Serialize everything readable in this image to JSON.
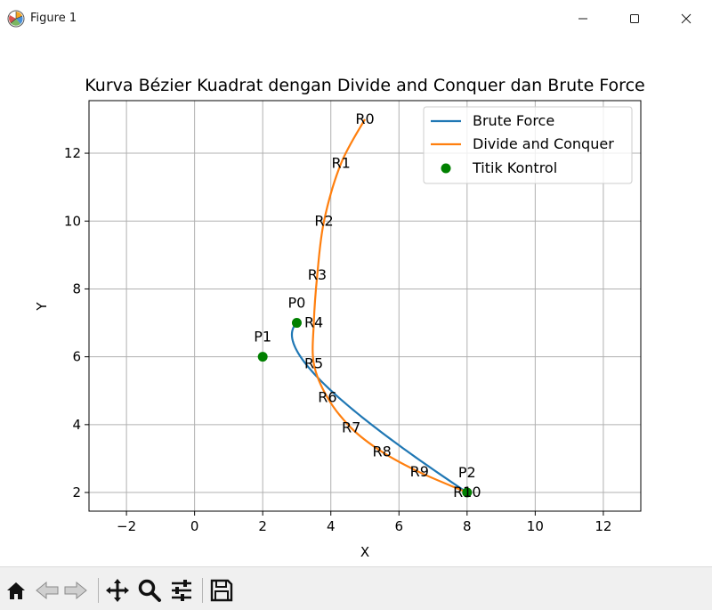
{
  "window": {
    "title": "Figure 1",
    "icon": "matplotlib-logo-icon",
    "controls": [
      "minimize-icon",
      "maximize-icon",
      "close-icon"
    ]
  },
  "toolbar": {
    "tools": [
      "home-icon",
      "back-icon",
      "forward-icon",
      "pan-icon",
      "zoom-icon",
      "configure-subplots-icon",
      "save-icon"
    ]
  },
  "colors": {
    "brute_force": "#1f77b4",
    "divide_and_conquer": "#ff7f0e",
    "control_points": "#008000",
    "grid": "#b0b0b0"
  },
  "chart_data": {
    "type": "line",
    "title": "Kurva Bézier Kuadrat dengan Divide and Conquer dan Brute Force",
    "xlabel": "X",
    "ylabel": "Y",
    "xlim": [
      -3.1,
      13.1
    ],
    "ylim": [
      1.45,
      13.55
    ],
    "xticks": [
      -2,
      0,
      2,
      4,
      6,
      8,
      10,
      12
    ],
    "yticks": [
      2,
      4,
      6,
      8,
      10,
      12
    ],
    "xtick_labels": [
      "−2",
      "0",
      "2",
      "4",
      "6",
      "8",
      "10",
      "12"
    ],
    "ytick_labels": [
      "2",
      "4",
      "6",
      "8",
      "10",
      "12"
    ],
    "grid": true,
    "legend_position": "top-right",
    "series": [
      {
        "name": "Brute Force",
        "kind": "line",
        "color": "#1f77b4",
        "points": [
          [
            3,
            7
          ],
          [
            8,
            2
          ],
          [
            2,
            6
          ]
        ]
      },
      {
        "name": "Divide and Conquer",
        "kind": "line",
        "color": "#ff7f0e",
        "points": [
          [
            5,
            13
          ],
          [
            4.3,
            11.7
          ],
          [
            3.8,
            10
          ],
          [
            3.6,
            8.4
          ],
          [
            3.5,
            7
          ],
          [
            3.5,
            5.8
          ],
          [
            3.9,
            4.8
          ],
          [
            4.6,
            3.9
          ],
          [
            5.5,
            3.2
          ],
          [
            6.6,
            2.6
          ],
          [
            8,
            2
          ]
        ]
      },
      {
        "name": "Titik Kontrol",
        "kind": "scatter",
        "color": "#008000",
        "points": [
          [
            3,
            7
          ],
          [
            2,
            6
          ],
          [
            8,
            2
          ]
        ]
      }
    ],
    "control_labels": [
      {
        "text": "P0",
        "x": 3,
        "y": 7
      },
      {
        "text": "P1",
        "x": 2,
        "y": 6
      },
      {
        "text": "P2",
        "x": 8,
        "y": 2
      }
    ],
    "r_labels": [
      {
        "text": "R0",
        "x": 5,
        "y": 13
      },
      {
        "text": "R1",
        "x": 4.3,
        "y": 11.7
      },
      {
        "text": "R2",
        "x": 3.8,
        "y": 10
      },
      {
        "text": "R3",
        "x": 3.6,
        "y": 8.4
      },
      {
        "text": "R4",
        "x": 3.5,
        "y": 7
      },
      {
        "text": "R5",
        "x": 3.5,
        "y": 5.8
      },
      {
        "text": "R6",
        "x": 3.9,
        "y": 4.8
      },
      {
        "text": "R7",
        "x": 4.6,
        "y": 3.9
      },
      {
        "text": "R8",
        "x": 5.5,
        "y": 3.2
      },
      {
        "text": "R9",
        "x": 6.6,
        "y": 2.6
      },
      {
        "text": "R10",
        "x": 8,
        "y": 2
      }
    ]
  }
}
